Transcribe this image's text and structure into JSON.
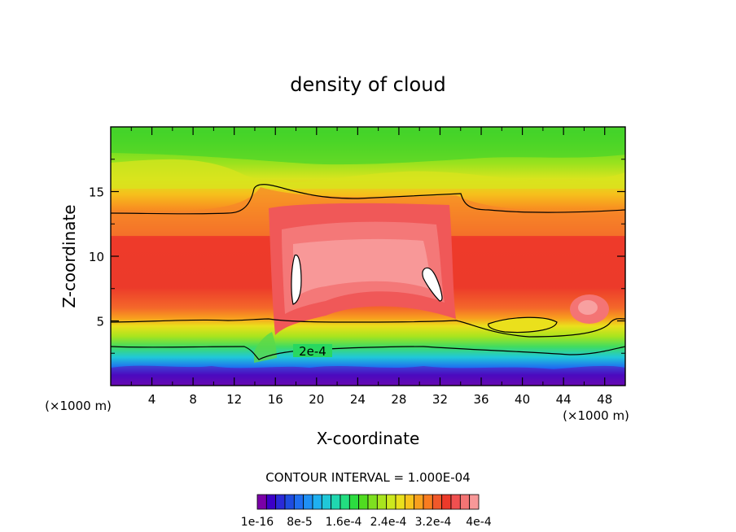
{
  "chart_data": {
    "type": "heatmap",
    "title": "density of cloud",
    "xlabel": "X-coordinate",
    "ylabel": "Z-coordinate",
    "x_unit": "(×1000 m)",
    "z_unit": "(×1000 m)",
    "xlim": [
      0,
      50
    ],
    "ylim": [
      0,
      20
    ],
    "x_ticks": [
      4,
      8,
      12,
      16,
      20,
      24,
      28,
      32,
      36,
      40,
      44,
      48
    ],
    "y_ticks": [
      5,
      10,
      15
    ],
    "contour_label": "2e-4",
    "contour_interval_text": "CONTOUR INTERVAL = 1.000E-04",
    "colorbar": {
      "colors": [
        "#7a00a8",
        "#3c00c8",
        "#2a2ad8",
        "#1e4ce0",
        "#1f6ef0",
        "#1f90f4",
        "#1fb0f0",
        "#20c8d8",
        "#20d8b0",
        "#22de80",
        "#2cdc40",
        "#50dc20",
        "#7ee020",
        "#a8e41e",
        "#cce81e",
        "#eae01c",
        "#f8c41c",
        "#f8a01e",
        "#f87c20",
        "#f0582a",
        "#ec3a2a",
        "#f05050",
        "#f47474",
        "#f89898"
      ],
      "labels": [
        "1e-16",
        "8e-5",
        "1.6e-4",
        "2.4e-4",
        "3.2e-4",
        "4e-4"
      ]
    }
  }
}
